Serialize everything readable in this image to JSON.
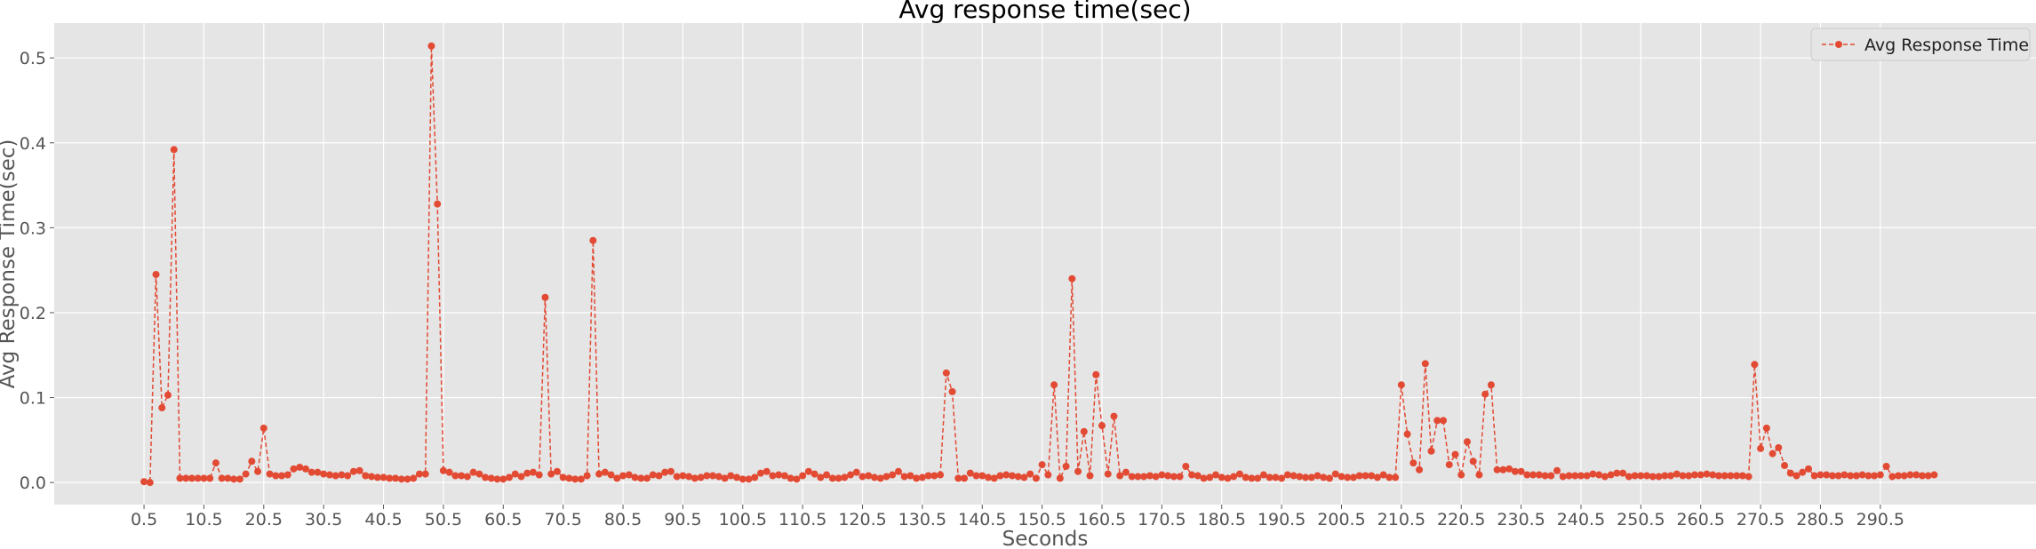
{
  "chart_data": {
    "type": "line",
    "title": "Avg response time(sec)",
    "xlabel": "Seconds",
    "ylabel": "Avg Response Time(sec)",
    "xlim": [
      -14.5,
      316.5
    ],
    "ylim": [
      -0.026,
      0.541
    ],
    "xticks": [
      0.5,
      10.5,
      20.5,
      30.5,
      40.5,
      50.5,
      60.5,
      70.5,
      80.5,
      90.5,
      100.5,
      110.5,
      120.5,
      130.5,
      140.5,
      150.5,
      160.5,
      170.5,
      180.5,
      190.5,
      200.5,
      210.5,
      220.5,
      230.5,
      240.5,
      250.5,
      260.5,
      270.5,
      280.5,
      290.5
    ],
    "xtick_labels": [
      "0.5",
      "10.5",
      "20.5",
      "30.5",
      "40.5",
      "50.5",
      "60.5",
      "70.5",
      "80.5",
      "90.5",
      "100.5",
      "110.5",
      "120.5",
      "130.5",
      "140.5",
      "150.5",
      "160.5",
      "170.5",
      "180.5",
      "190.5",
      "200.5",
      "210.5",
      "220.5",
      "230.5",
      "240.5",
      "250.5",
      "260.5",
      "270.5",
      "280.5",
      "290.5"
    ],
    "yticks": [
      0.0,
      0.1,
      0.2,
      0.3,
      0.4,
      0.5
    ],
    "ytick_labels": [
      "0.0",
      "0.1",
      "0.2",
      "0.3",
      "0.4",
      "0.5"
    ],
    "grid": true,
    "legend_position": "top-right",
    "series": [
      {
        "name": "Avg Response Time",
        "color": "#e24a33",
        "line_style": "dashed",
        "marker": "circle",
        "x_start": 0.5,
        "x_step": 1,
        "values": [
          0.001,
          0.0,
          0.245,
          0.088,
          0.103,
          0.392,
          0.005,
          0.005,
          0.005,
          0.005,
          0.005,
          0.005,
          0.023,
          0.005,
          0.005,
          0.004,
          0.004,
          0.01,
          0.025,
          0.013,
          0.064,
          0.01,
          0.008,
          0.008,
          0.009,
          0.016,
          0.018,
          0.016,
          0.012,
          0.012,
          0.01,
          0.009,
          0.008,
          0.009,
          0.008,
          0.013,
          0.014,
          0.008,
          0.007,
          0.006,
          0.006,
          0.005,
          0.005,
          0.004,
          0.004,
          0.005,
          0.01,
          0.01,
          0.514,
          0.328,
          0.014,
          0.012,
          0.008,
          0.008,
          0.007,
          0.012,
          0.01,
          0.006,
          0.005,
          0.004,
          0.004,
          0.006,
          0.01,
          0.007,
          0.011,
          0.012,
          0.009,
          0.218,
          0.01,
          0.013,
          0.006,
          0.005,
          0.004,
          0.004,
          0.008,
          0.285,
          0.01,
          0.012,
          0.009,
          0.005,
          0.008,
          0.009,
          0.006,
          0.005,
          0.005,
          0.009,
          0.008,
          0.012,
          0.013,
          0.007,
          0.008,
          0.007,
          0.005,
          0.006,
          0.008,
          0.008,
          0.007,
          0.005,
          0.008,
          0.006,
          0.004,
          0.004,
          0.006,
          0.011,
          0.013,
          0.008,
          0.009,
          0.008,
          0.005,
          0.004,
          0.008,
          0.013,
          0.01,
          0.006,
          0.009,
          0.005,
          0.005,
          0.006,
          0.009,
          0.012,
          0.007,
          0.008,
          0.006,
          0.005,
          0.007,
          0.009,
          0.013,
          0.007,
          0.008,
          0.005,
          0.006,
          0.008,
          0.008,
          0.009,
          0.129,
          0.107,
          0.005,
          0.005,
          0.011,
          0.008,
          0.008,
          0.006,
          0.005,
          0.008,
          0.009,
          0.008,
          0.007,
          0.006,
          0.01,
          0.005,
          0.021,
          0.009,
          0.115,
          0.005,
          0.019,
          0.24,
          0.013,
          0.06,
          0.008,
          0.127,
          0.067,
          0.01,
          0.078,
          0.008,
          0.012,
          0.007,
          0.007,
          0.007,
          0.008,
          0.007,
          0.009,
          0.008,
          0.007,
          0.007,
          0.019,
          0.009,
          0.008,
          0.005,
          0.006,
          0.009,
          0.006,
          0.005,
          0.007,
          0.01,
          0.006,
          0.005,
          0.005,
          0.009,
          0.006,
          0.006,
          0.005,
          0.009,
          0.008,
          0.007,
          0.006,
          0.006,
          0.008,
          0.006,
          0.005,
          0.01,
          0.007,
          0.006,
          0.006,
          0.008,
          0.008,
          0.008,
          0.006,
          0.009,
          0.006,
          0.006,
          0.115,
          0.057,
          0.023,
          0.015,
          0.14,
          0.037,
          0.073,
          0.073,
          0.021,
          0.033,
          0.009,
          0.048,
          0.025,
          0.009,
          0.104,
          0.115,
          0.015,
          0.015,
          0.016,
          0.013,
          0.013,
          0.009,
          0.009,
          0.009,
          0.008,
          0.008,
          0.014,
          0.007,
          0.008,
          0.008,
          0.008,
          0.008,
          0.01,
          0.009,
          0.007,
          0.009,
          0.011,
          0.011,
          0.007,
          0.008,
          0.008,
          0.008,
          0.007,
          0.007,
          0.008,
          0.008,
          0.01,
          0.008,
          0.008,
          0.009,
          0.009,
          0.01,
          0.009,
          0.008,
          0.008,
          0.008,
          0.008,
          0.008,
          0.007,
          0.139,
          0.04,
          0.064,
          0.034,
          0.041,
          0.02,
          0.011,
          0.008,
          0.012,
          0.016,
          0.008,
          0.009,
          0.009,
          0.008,
          0.008,
          0.009,
          0.008,
          0.008,
          0.009,
          0.008,
          0.008,
          0.009,
          0.019,
          0.007,
          0.008,
          0.008,
          0.009,
          0.009,
          0.008,
          0.008,
          0.009
        ]
      }
    ]
  }
}
